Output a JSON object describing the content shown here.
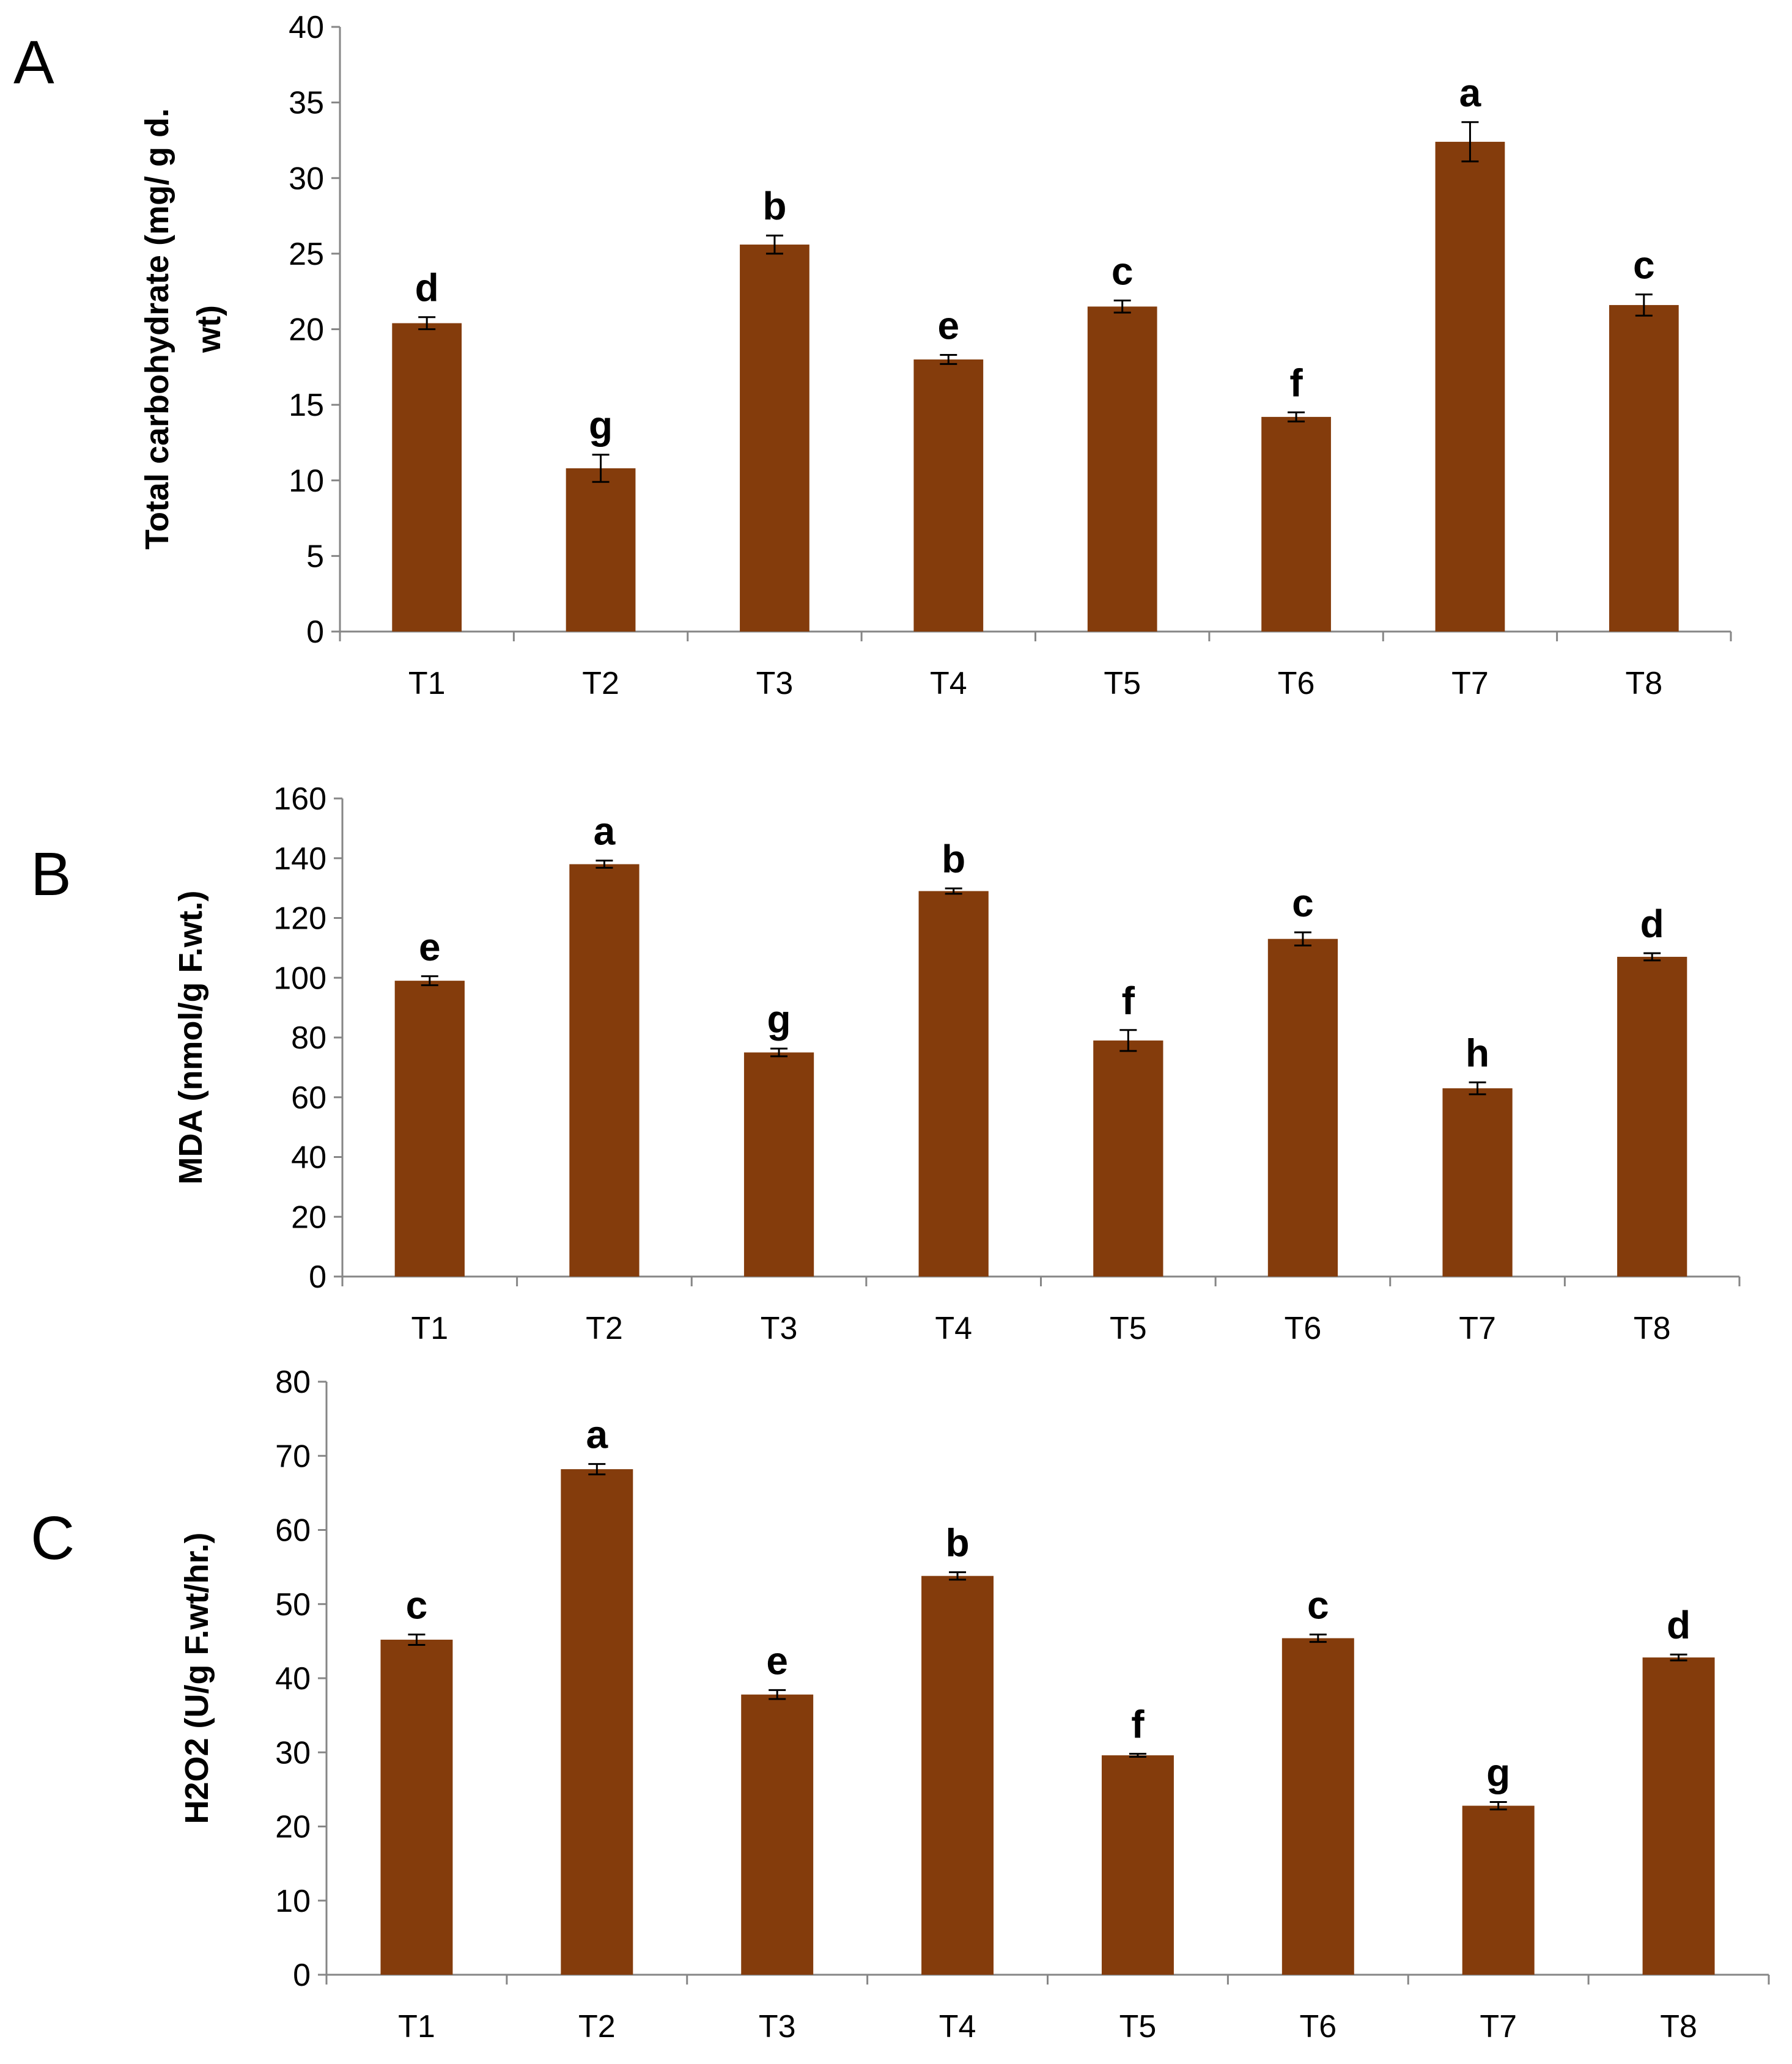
{
  "chart_data": [
    {
      "panel": "A",
      "type": "bar",
      "categories": [
        "T1",
        "T2",
        "T3",
        "T4",
        "T5",
        "T6",
        "T7",
        "T8"
      ],
      "values": [
        20.4,
        10.8,
        25.6,
        18.0,
        21.5,
        14.2,
        32.4,
        21.6
      ],
      "errors": [
        0.4,
        0.9,
        0.6,
        0.3,
        0.4,
        0.3,
        1.3,
        0.7
      ],
      "letters": [
        "d",
        "g",
        "b",
        "e",
        "c",
        "f",
        "a",
        "c"
      ],
      "ylabel_lines": [
        "Total carbohydrate (mg/ g d.",
        "wt)"
      ],
      "ylim": [
        0,
        40
      ],
      "yticks": [
        0,
        5,
        10,
        15,
        20,
        25,
        30,
        35,
        40
      ],
      "bar_color": "#843C0C"
    },
    {
      "panel": "B",
      "type": "bar",
      "categories": [
        "T1",
        "T2",
        "T3",
        "T4",
        "T5",
        "T6",
        "T7",
        "T8"
      ],
      "values": [
        99,
        138,
        75,
        129,
        79,
        113,
        63,
        107
      ],
      "errors": [
        1.5,
        1.2,
        1.3,
        0.9,
        3.5,
        2.2,
        2.0,
        1.2
      ],
      "letters": [
        "e",
        "a",
        "g",
        "b",
        "f",
        "c",
        "h",
        "d"
      ],
      "ylabel_lines": [
        "MDA (nmol/g F.wt.)"
      ],
      "ylim": [
        0,
        160
      ],
      "yticks": [
        0,
        20,
        40,
        60,
        80,
        100,
        120,
        140,
        160
      ],
      "bar_color": "#843C0C"
    },
    {
      "panel": "C",
      "type": "bar",
      "categories": [
        "T1",
        "T2",
        "T3",
        "T4",
        "T5",
        "T6",
        "T7",
        "T8"
      ],
      "values": [
        45.2,
        68.2,
        37.8,
        53.8,
        29.6,
        45.4,
        22.8,
        42.8
      ],
      "errors": [
        0.7,
        0.7,
        0.6,
        0.5,
        0.2,
        0.5,
        0.5,
        0.4
      ],
      "letters": [
        "c",
        "a",
        "e",
        "b",
        "f",
        "c",
        "g",
        "d"
      ],
      "ylabel_lines": [
        "H2O2 (U/g F.wt/hr.)"
      ],
      "ylim": [
        0,
        80
      ],
      "yticks": [
        0,
        10,
        20,
        30,
        40,
        50,
        60,
        70,
        80
      ],
      "bar_color": "#843C0C"
    }
  ]
}
